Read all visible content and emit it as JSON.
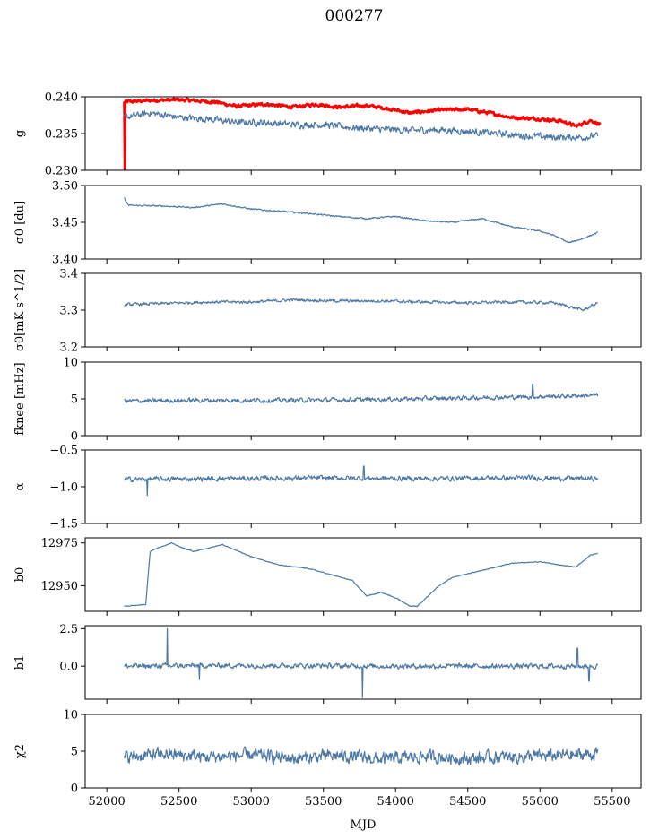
{
  "title": "000277",
  "colors": {
    "line": "#4e79a7",
    "highlight": "#ff0000",
    "axis": "#000000"
  },
  "chart_data": [
    {
      "type": "line",
      "ylabel": "g",
      "ylim": [
        0.23,
        0.24
      ],
      "yticks": [
        "0.230",
        "0.235",
        "0.240"
      ],
      "ytick_values": [
        0.23,
        0.235,
        0.24
      ],
      "series": [
        {
          "color": "#ff0000",
          "width": 2.6,
          "noise": 0.00035,
          "points": [
            [
              52120,
              0.2393
            ],
            [
              52300,
              0.2395
            ],
            [
              52500,
              0.2396
            ],
            [
              52750,
              0.2393
            ],
            [
              52900,
              0.2387
            ],
            [
              53100,
              0.239
            ],
            [
              53300,
              0.2386
            ],
            [
              53450,
              0.239
            ],
            [
              53600,
              0.2386
            ],
            [
              53800,
              0.2388
            ],
            [
              53950,
              0.2384
            ],
            [
              54100,
              0.2378
            ],
            [
              54300,
              0.2382
            ],
            [
              54500,
              0.2383
            ],
            [
              54650,
              0.2378
            ],
            [
              54800,
              0.2372
            ],
            [
              55000,
              0.237
            ],
            [
              55150,
              0.2367
            ],
            [
              55250,
              0.236
            ],
            [
              55350,
              0.2368
            ],
            [
              55420,
              0.2362
            ]
          ],
          "spikes": [
            [
              52125,
              0.23
            ]
          ]
        },
        {
          "color": "#4e79a7",
          "width": 1.2,
          "noise": 0.0007,
          "points": [
            [
              52120,
              0.2372
            ],
            [
              52300,
              0.2378
            ],
            [
              52500,
              0.2372
            ],
            [
              52700,
              0.237
            ],
            [
              52900,
              0.2365
            ],
            [
              53100,
              0.2365
            ],
            [
              53300,
              0.2362
            ],
            [
              53500,
              0.2362
            ],
            [
              53700,
              0.2358
            ],
            [
              53900,
              0.2356
            ],
            [
              54100,
              0.2354
            ],
            [
              54300,
              0.2355
            ],
            [
              54500,
              0.2353
            ],
            [
              54700,
              0.235
            ],
            [
              54900,
              0.2347
            ],
            [
              55100,
              0.2345
            ],
            [
              55300,
              0.2345
            ],
            [
              55400,
              0.2347
            ]
          ]
        }
      ]
    },
    {
      "type": "line",
      "ylabel": "σ0 [du]",
      "ylim": [
        3.4,
        3.5
      ],
      "yticks": [
        "3.40",
        "3.45",
        "3.50"
      ],
      "ytick_values": [
        3.4,
        3.45,
        3.5
      ],
      "series": [
        {
          "color": "#4e79a7",
          "width": 1.2,
          "noise": 0.0015,
          "points": [
            [
              52120,
              3.483
            ],
            [
              52150,
              3.473
            ],
            [
              52400,
              3.472
            ],
            [
              52600,
              3.47
            ],
            [
              52800,
              3.475
            ],
            [
              53000,
              3.468
            ],
            [
              53200,
              3.465
            ],
            [
              53400,
              3.462
            ],
            [
              53600,
              3.458
            ],
            [
              53800,
              3.455
            ],
            [
              54000,
              3.458
            ],
            [
              54200,
              3.452
            ],
            [
              54400,
              3.45
            ],
            [
              54600,
              3.455
            ],
            [
              54800,
              3.444
            ],
            [
              55000,
              3.438
            ],
            [
              55100,
              3.432
            ],
            [
              55200,
              3.422
            ],
            [
              55300,
              3.428
            ],
            [
              55400,
              3.436
            ]
          ]
        }
      ]
    },
    {
      "type": "line",
      "ylabel": "σ0[mK s^1/2]",
      "ylim": [
        3.2,
        3.4
      ],
      "yticks": [
        "3.2",
        "3.3",
        "3.4"
      ],
      "ytick_values": [
        3.2,
        3.3,
        3.4
      ],
      "series": [
        {
          "color": "#4e79a7",
          "width": 1.2,
          "noise": 0.006,
          "points": [
            [
              52120,
              3.315
            ],
            [
              52400,
              3.318
            ],
            [
              52700,
              3.322
            ],
            [
              53000,
              3.322
            ],
            [
              53300,
              3.328
            ],
            [
              53600,
              3.325
            ],
            [
              53900,
              3.325
            ],
            [
              54200,
              3.322
            ],
            [
              54500,
              3.32
            ],
            [
              54800,
              3.322
            ],
            [
              55100,
              3.32
            ],
            [
              55300,
              3.3
            ],
            [
              55400,
              3.32
            ]
          ]
        }
      ]
    },
    {
      "type": "line",
      "ylabel": "fknee [mHz]",
      "ylim": [
        0,
        10
      ],
      "yticks": [
        "0",
        "5",
        "10"
      ],
      "ytick_values": [
        0,
        5,
        10
      ],
      "series": [
        {
          "color": "#4e79a7",
          "width": 1.2,
          "noise": 0.45,
          "points": [
            [
              52120,
              4.7
            ],
            [
              52600,
              4.8
            ],
            [
              53200,
              4.8
            ],
            [
              53800,
              4.9
            ],
            [
              54400,
              5.1
            ],
            [
              55000,
              5.3
            ],
            [
              55400,
              5.5
            ]
          ],
          "spikes": [
            [
              54950,
              7.0
            ]
          ]
        }
      ]
    },
    {
      "type": "line",
      "ylabel": "α",
      "ylim": [
        -1.5,
        -0.5
      ],
      "yticks": [
        "−1.5",
        "−1.0",
        "−0.5"
      ],
      "ytick_values": [
        -1.5,
        -1.0,
        -0.5
      ],
      "series": [
        {
          "color": "#4e79a7",
          "width": 1.2,
          "noise": 0.05,
          "points": [
            [
              52120,
              -0.9
            ],
            [
              52800,
              -0.89
            ],
            [
              53500,
              -0.88
            ],
            [
              54200,
              -0.89
            ],
            [
              54900,
              -0.88
            ],
            [
              55400,
              -0.89
            ]
          ],
          "spikes": [
            [
              53780,
              -0.72
            ],
            [
              52280,
              -1.12
            ]
          ]
        }
      ]
    },
    {
      "type": "line",
      "ylabel": "b0",
      "ylim": [
        12935,
        12978
      ],
      "yticks": [
        "12950",
        "12975"
      ],
      "ytick_values": [
        12950,
        12975
      ],
      "series": [
        {
          "color": "#4e79a7",
          "width": 1.2,
          "noise": 0.35,
          "points": [
            [
              52120,
              12938
            ],
            [
              52200,
              12938.5
            ],
            [
              52270,
              12939
            ],
            [
              52285,
              12955
            ],
            [
              52300,
              12970
            ],
            [
              52350,
              12972
            ],
            [
              52450,
              12975
            ],
            [
              52500,
              12973
            ],
            [
              52600,
              12970
            ],
            [
              52700,
              12972
            ],
            [
              52800,
              12974
            ],
            [
              53000,
              12967
            ],
            [
              53200,
              12962
            ],
            [
              53400,
              12960
            ],
            [
              53700,
              12953
            ],
            [
              53800,
              12944
            ],
            [
              53900,
              12946
            ],
            [
              54000,
              12943
            ],
            [
              54100,
              12938
            ],
            [
              54150,
              12938
            ],
            [
              54300,
              12950
            ],
            [
              54400,
              12955
            ],
            [
              54600,
              12959
            ],
            [
              54800,
              12963
            ],
            [
              55000,
              12964
            ],
            [
              55150,
              12962
            ],
            [
              55250,
              12961
            ],
            [
              55350,
              12968
            ],
            [
              55400,
              12969
            ]
          ]
        }
      ]
    },
    {
      "type": "line",
      "ylabel": "b1",
      "ylim": [
        -2.2,
        2.7
      ],
      "yticks": [
        "0.0",
        "2.5"
      ],
      "ytick_values": [
        0.0,
        2.5
      ],
      "series": [
        {
          "color": "#4e79a7",
          "width": 1.2,
          "noise": 0.25,
          "points": [
            [
              52120,
              0.0
            ],
            [
              53000,
              0.05
            ],
            [
              54000,
              0.0
            ],
            [
              55000,
              0.0
            ],
            [
              55400,
              0.0
            ]
          ],
          "spikes": [
            [
              52420,
              2.5
            ],
            [
              53770,
              -2.1
            ],
            [
              55260,
              1.2
            ],
            [
              55340,
              -1.0
            ],
            [
              52640,
              -0.9
            ]
          ]
        }
      ]
    },
    {
      "type": "line",
      "ylabel": "χ2",
      "ylim": [
        0,
        10
      ],
      "yticks": [
        "0",
        "5",
        "10"
      ],
      "ytick_values": [
        0,
        5,
        10
      ],
      "xlabel": "MJD",
      "xticks": [
        "52000",
        "52500",
        "53000",
        "53500",
        "54000",
        "54500",
        "55000",
        "55500"
      ],
      "xtick_values": [
        52000,
        52500,
        53000,
        53500,
        54000,
        54500,
        55000,
        55500
      ],
      "series": [
        {
          "color": "#4e79a7",
          "width": 1.2,
          "noise": 1.3,
          "points": [
            [
              52120,
              4.2
            ],
            [
              52400,
              4.6
            ],
            [
              52700,
              4.2
            ],
            [
              53000,
              4.5
            ],
            [
              53300,
              4.0
            ],
            [
              53600,
              4.4
            ],
            [
              53900,
              3.9
            ],
            [
              54200,
              4.3
            ],
            [
              54500,
              4.0
            ],
            [
              54800,
              4.2
            ],
            [
              55100,
              4.4
            ],
            [
              55400,
              4.6
            ]
          ]
        }
      ]
    }
  ]
}
